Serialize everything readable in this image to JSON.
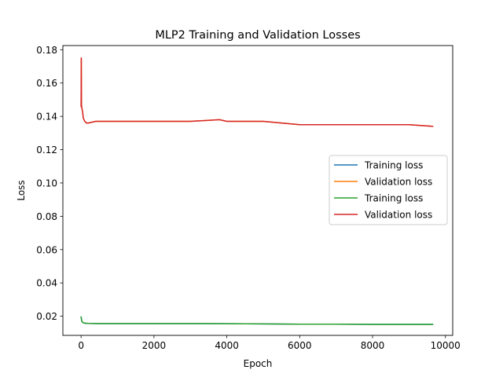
{
  "chart_data": {
    "type": "line",
    "title": "MLP2 Training and Validation Losses",
    "xlabel": "Epoch",
    "ylabel": "Loss",
    "xlim": [
      -500,
      10200
    ],
    "ylim": [
      0.0085,
      0.1825
    ],
    "xticks": [
      0,
      2000,
      4000,
      6000,
      8000,
      10000
    ],
    "xtick_labels": [
      "0",
      "2000",
      "4000",
      "6000",
      "8000",
      "10000"
    ],
    "yticks": [
      0.02,
      0.04,
      0.06,
      0.08,
      0.1,
      0.12,
      0.14,
      0.16,
      0.18
    ],
    "ytick_labels": [
      "0.02",
      "0.04",
      "0.06",
      "0.08",
      "0.10",
      "0.12",
      "0.14",
      "0.16",
      "0.18"
    ],
    "grid": false,
    "legend_position": "center-right",
    "series": [
      {
        "name": "Training loss",
        "color": "#1f77b4",
        "x": [
          0,
          20,
          50,
          100,
          200,
          500,
          1000,
          2000,
          3000,
          4000,
          5000,
          6000,
          7000,
          8000,
          9000,
          9650
        ],
        "y": [
          0.0195,
          0.017,
          0.0162,
          0.0158,
          0.0157,
          0.0156,
          0.0156,
          0.0156,
          0.0156,
          0.0155,
          0.0154,
          0.0152,
          0.0152,
          0.0151,
          0.0151,
          0.0151
        ]
      },
      {
        "name": "Validation loss",
        "color": "#ff7f0e",
        "x": [
          0,
          5,
          10,
          20,
          40,
          60,
          100,
          150,
          200,
          400,
          800,
          1200,
          2000,
          3000,
          3800,
          4000,
          5000,
          5500,
          6000,
          7000,
          8000,
          9000,
          9650
        ],
        "y": [
          0.146,
          0.175,
          0.147,
          0.145,
          0.143,
          0.139,
          0.137,
          0.136,
          0.136,
          0.137,
          0.137,
          0.137,
          0.137,
          0.137,
          0.138,
          0.137,
          0.137,
          0.136,
          0.135,
          0.135,
          0.135,
          0.135,
          0.134
        ]
      },
      {
        "name": "Training loss",
        "color": "#2ca02c",
        "x": [
          0,
          20,
          50,
          100,
          200,
          500,
          1000,
          2000,
          3000,
          4000,
          5000,
          6000,
          7000,
          8000,
          9000,
          9650
        ],
        "y": [
          0.0195,
          0.017,
          0.0162,
          0.0158,
          0.0157,
          0.0156,
          0.0156,
          0.0156,
          0.0156,
          0.0155,
          0.0154,
          0.0152,
          0.0152,
          0.0151,
          0.0151,
          0.0151
        ]
      },
      {
        "name": "Validation loss",
        "color": "#d62728",
        "x": [
          0,
          5,
          10,
          20,
          40,
          60,
          100,
          150,
          200,
          400,
          800,
          1200,
          2000,
          3000,
          3800,
          4000,
          5000,
          5500,
          6000,
          7000,
          8000,
          9000,
          9650
        ],
        "y": [
          0.146,
          0.175,
          0.147,
          0.145,
          0.143,
          0.139,
          0.137,
          0.136,
          0.136,
          0.137,
          0.137,
          0.137,
          0.137,
          0.137,
          0.138,
          0.137,
          0.137,
          0.136,
          0.135,
          0.135,
          0.135,
          0.135,
          0.134
        ]
      }
    ]
  }
}
